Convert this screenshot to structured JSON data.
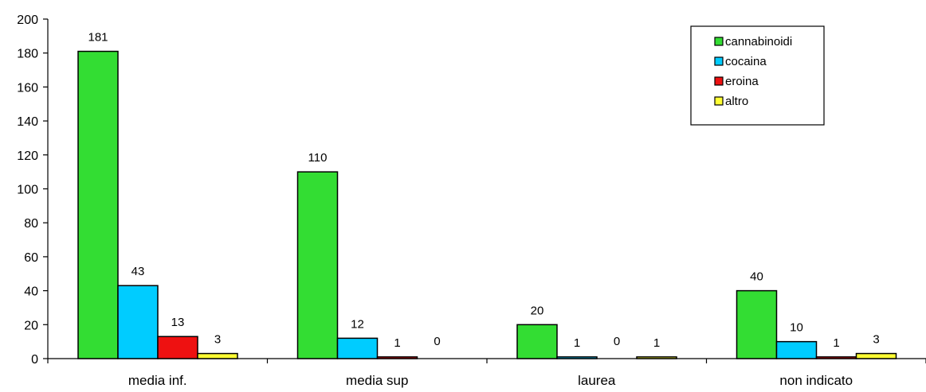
{
  "chart_data": {
    "type": "bar",
    "categories": [
      "media inf.",
      "media sup",
      "laurea",
      "non indicato"
    ],
    "series": [
      {
        "name": "cannabinoidi",
        "color": "#33dd33",
        "values": [
          181,
          110,
          20,
          40
        ]
      },
      {
        "name": "cocaina",
        "color": "#00ccff",
        "values": [
          43,
          12,
          1,
          10
        ]
      },
      {
        "name": "eroina",
        "color": "#ee1111",
        "values": [
          13,
          1,
          0,
          1
        ]
      },
      {
        "name": "altro",
        "color": "#ffff33",
        "values": [
          3,
          0,
          1,
          3
        ]
      }
    ],
    "ylim": [
      0,
      200
    ],
    "yticks": [
      0,
      20,
      40,
      60,
      80,
      100,
      120,
      140,
      160,
      180,
      200
    ],
    "title": "",
    "xlabel": "",
    "ylabel": "",
    "grid": false,
    "legend_position": "top-right"
  }
}
